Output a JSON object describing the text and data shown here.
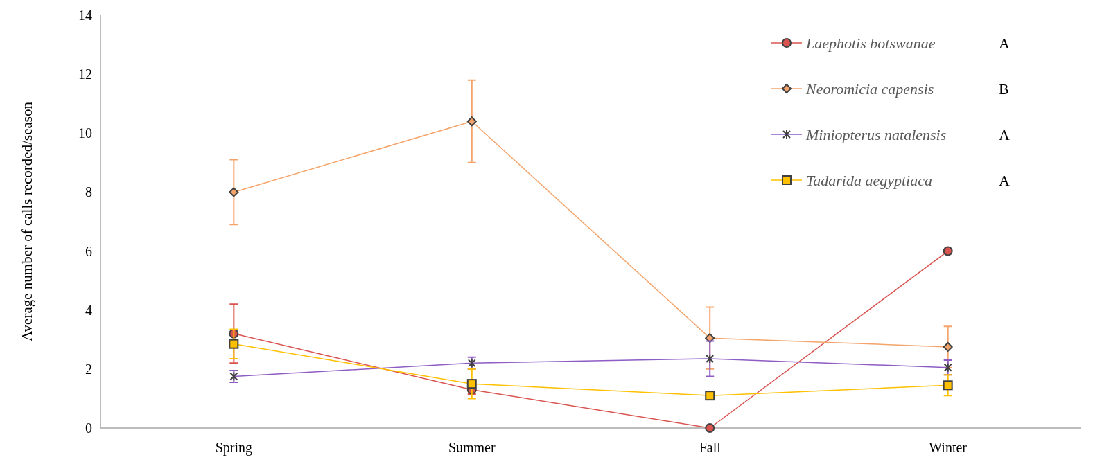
{
  "chart_data": {
    "type": "line",
    "ylabel": "Average number of calls recorded/season",
    "categories": [
      "Spring",
      "Summer",
      "Fall",
      "Winter"
    ],
    "ylim": [
      0,
      14
    ],
    "yticks": [
      0,
      2,
      4,
      6,
      8,
      10,
      12,
      14
    ],
    "grid": false,
    "legend": "top right",
    "annotations": [
      "A",
      "B",
      "A",
      "A"
    ],
    "series": [
      {
        "name": "Laephotis botswanae",
        "color": "#d9534f",
        "marker": "circle",
        "values": [
          3.2,
          1.3,
          0,
          6
        ],
        "errors": [
          1.0,
          0.15,
          null,
          null
        ]
      },
      {
        "name": "Neoromicia capensis",
        "color": "#f4a46a",
        "marker": "diamond",
        "values": [
          8,
          10.4,
          3.05,
          2.75
        ],
        "errors": [
          1.1,
          1.4,
          1.05,
          0.7
        ]
      },
      {
        "name": "Miniopterus natalensis",
        "color": "#8e5cc4",
        "marker": "cross",
        "values": [
          1.75,
          2.2,
          2.35,
          2.05
        ],
        "errors": [
          0.2,
          0.2,
          0.6,
          0.25
        ]
      },
      {
        "name": "Tadarida aegyptiaca",
        "color": "#ffc000",
        "marker": "square",
        "values": [
          2.85,
          1.5,
          1.1,
          1.45
        ],
        "errors": [
          0.5,
          0.5,
          null,
          0.35
        ]
      }
    ]
  }
}
